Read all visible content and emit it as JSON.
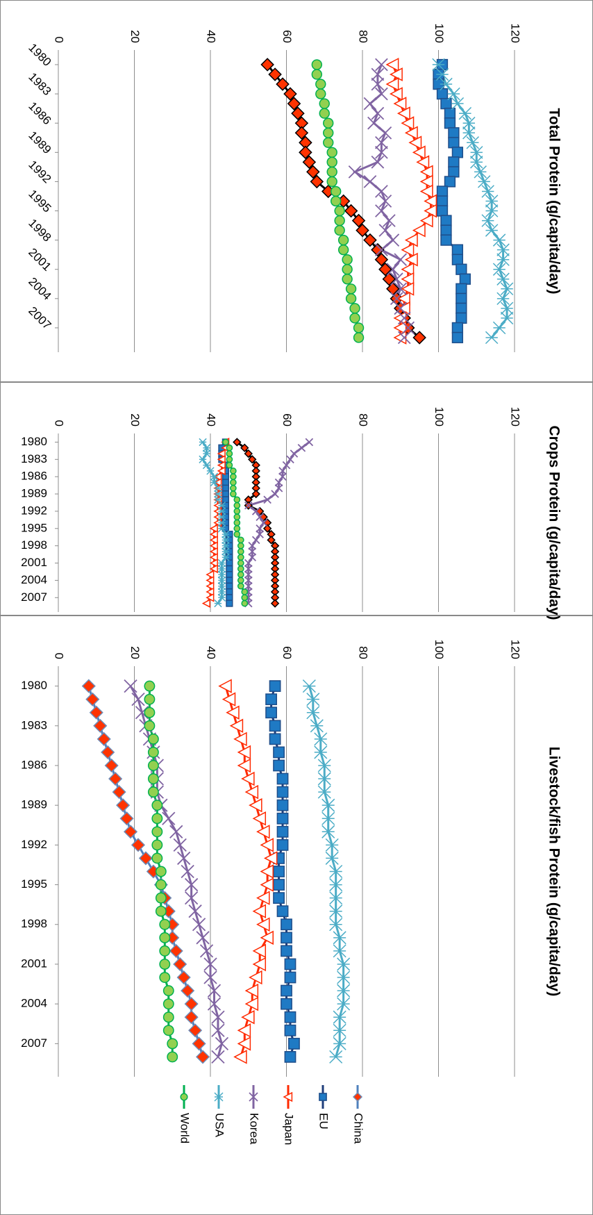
{
  "chart_data": [
    {
      "type": "line",
      "title": "Total Protein (g/capita/day)",
      "x": [
        1980,
        1981,
        1982,
        1983,
        1984,
        1985,
        1986,
        1987,
        1988,
        1989,
        1990,
        1991,
        1992,
        1993,
        1994,
        1995,
        1996,
        1997,
        1998,
        1999,
        2000,
        2001,
        2002,
        2003,
        2004,
        2005,
        2006,
        2007,
        2008
      ],
      "xlim": [
        1978.5,
        2009.5
      ],
      "xticks": [
        1980,
        1983,
        1986,
        1989,
        1992,
        1995,
        1998,
        2001,
        2004,
        2007
      ],
      "ylim": [
        0,
        120
      ],
      "yticks": [
        0,
        20,
        40,
        60,
        80,
        100,
        120
      ],
      "grid": true,
      "series": [
        {
          "name": "China",
          "color": "#ff3300",
          "line_color": "#000000",
          "edge": "#000000",
          "marker": "diamond",
          "values": [
            55,
            57,
            59,
            61,
            62,
            63,
            64,
            64,
            65,
            65,
            66,
            67,
            68,
            71,
            75,
            77,
            79,
            80,
            82,
            84,
            85,
            86,
            87,
            88,
            89,
            90,
            91,
            92,
            95
          ]
        },
        {
          "name": "EU",
          "color": "#1f7ac4",
          "line_color": "#1f3d7a",
          "edge": "#1f4e8a",
          "marker": "square",
          "values": [
            101,
            100,
            100,
            101,
            102,
            103,
            103,
            104,
            104,
            105,
            104,
            104,
            103,
            101,
            101,
            101,
            102,
            102,
            102,
            105,
            105,
            106,
            107,
            106,
            106,
            106,
            106,
            105,
            105
          ]
        },
        {
          "name": "Japan",
          "color": "#ffffff",
          "line_color": "#ff2a00",
          "edge": "#ff2a00",
          "marker": "triangle",
          "values": [
            88,
            89,
            88,
            89,
            90,
            91,
            92,
            93,
            94,
            95,
            96,
            97,
            97,
            97,
            98,
            98,
            97,
            95,
            93,
            92,
            93,
            92,
            92,
            92,
            91,
            91,
            90,
            90,
            90
          ]
        },
        {
          "name": "Korea",
          "color": "#8064a2",
          "line_color": "#8064a2",
          "edge": "#8064a2",
          "marker": "x",
          "values": [
            85,
            84,
            84,
            85,
            82,
            84,
            83,
            86,
            85,
            85,
            84,
            78,
            82,
            85,
            86,
            85,
            87,
            86,
            88,
            85,
            90,
            88,
            89,
            90,
            89,
            90,
            91,
            92,
            91
          ]
        },
        {
          "name": "USA",
          "color": "#4bacc6",
          "line_color": "#4bacc6",
          "edge": "#4bacc6",
          "marker": "star",
          "values": [
            100,
            101,
            102,
            104,
            105,
            107,
            108,
            108,
            109,
            110,
            110,
            111,
            112,
            113,
            114,
            114,
            113,
            114,
            116,
            117,
            117,
            116,
            117,
            118,
            117,
            118,
            118,
            116,
            114
          ]
        },
        {
          "name": "World",
          "color": "#92d050",
          "line_color": "#00b050",
          "edge": "#00b050",
          "marker": "circle",
          "values": [
            68,
            68,
            69,
            69,
            70,
            70,
            71,
            71,
            71,
            72,
            72,
            72,
            72,
            73,
            73,
            74,
            74,
            74,
            75,
            75,
            76,
            76,
            76,
            77,
            77,
            78,
            78,
            79,
            79
          ]
        }
      ]
    },
    {
      "type": "line",
      "title": "Crops Protein (g/capita/day)",
      "x": [
        1980,
        1981,
        1982,
        1983,
        1984,
        1985,
        1986,
        1987,
        1988,
        1989,
        1990,
        1991,
        1992,
        1993,
        1994,
        1995,
        1996,
        1997,
        1998,
        1999,
        2000,
        2001,
        2002,
        2003,
        2004,
        2005,
        2006,
        2007,
        2008
      ],
      "xlim": [
        1978.5,
        2009.5
      ],
      "xticks": [
        1980,
        1983,
        1986,
        1989,
        1992,
        1995,
        1998,
        2001,
        2004,
        2007
      ],
      "ylim": [
        0,
        120
      ],
      "yticks": [
        0,
        20,
        40,
        60,
        80,
        100,
        120
      ],
      "grid": true,
      "series": [
        {
          "name": "China",
          "color": "#ff3300",
          "line_color": "#000000",
          "edge": "#000000",
          "marker": "diamond",
          "values": [
            47,
            49,
            50,
            51,
            52,
            52,
            52,
            52,
            52,
            52,
            50,
            50,
            53,
            54,
            55,
            55,
            56,
            56,
            57,
            57,
            57,
            57,
            57,
            57,
            57,
            57,
            57,
            57,
            57
          ]
        },
        {
          "name": "EU",
          "color": "#1f7ac4",
          "line_color": "#1f3d7a",
          "edge": "#1f4e8a",
          "marker": "square",
          "values": [
            44,
            43,
            43,
            43,
            44,
            44,
            44,
            44,
            44,
            44,
            44,
            44,
            44,
            44,
            44,
            44,
            45,
            45,
            45,
            45,
            45,
            45,
            45,
            45,
            45,
            45,
            45,
            45,
            45
          ]
        },
        {
          "name": "Japan",
          "color": "#ffffff",
          "line_color": "#ff2a00",
          "edge": "#ff2a00",
          "marker": "triangle",
          "values": [
            44,
            44,
            43,
            43,
            43,
            43,
            42,
            42,
            42,
            42,
            42,
            42,
            42,
            42,
            42,
            41,
            41,
            41,
            41,
            41,
            41,
            41,
            41,
            40,
            40,
            40,
            40,
            40,
            39
          ]
        },
        {
          "name": "Korea",
          "color": "#8064a2",
          "line_color": "#8064a2",
          "edge": "#8064a2",
          "marker": "x",
          "values": [
            66,
            64,
            62,
            61,
            60,
            59,
            59,
            58,
            58,
            57,
            55,
            50,
            52,
            53,
            54,
            53,
            53,
            52,
            51,
            51,
            51,
            50,
            50,
            50,
            50,
            50,
            50,
            50,
            50
          ]
        },
        {
          "name": "USA",
          "color": "#4bacc6",
          "line_color": "#4bacc6",
          "edge": "#4bacc6",
          "marker": "star",
          "values": [
            38,
            39,
            39,
            38,
            39,
            40,
            41,
            41,
            42,
            42,
            42,
            43,
            43,
            43,
            43,
            43,
            44,
            44,
            44,
            44,
            44,
            43,
            43,
            43,
            43,
            43,
            43,
            43,
            42
          ]
        },
        {
          "name": "World",
          "color": "#92d050",
          "line_color": "#00b050",
          "edge": "#00b050",
          "marker": "circle",
          "values": [
            44,
            45,
            45,
            45,
            45,
            46,
            46,
            46,
            46,
            46,
            47,
            47,
            47,
            47,
            47,
            47,
            47,
            48,
            48,
            48,
            48,
            48,
            48,
            48,
            48,
            48,
            49,
            49,
            49
          ]
        }
      ]
    },
    {
      "type": "line",
      "title": "Livestock/fish Protein (g/capita/day)",
      "x": [
        1980,
        1981,
        1982,
        1983,
        1984,
        1985,
        1986,
        1987,
        1988,
        1989,
        1990,
        1991,
        1992,
        1993,
        1994,
        1995,
        1996,
        1997,
        1998,
        1999,
        2000,
        2001,
        2002,
        2003,
        2004,
        2005,
        2006,
        2007,
        2008
      ],
      "xlim": [
        1978.5,
        2009.5
      ],
      "xticks": [
        1980,
        1983,
        1986,
        1989,
        1992,
        1995,
        1998,
        2001,
        2004,
        2007
      ],
      "ylim": [
        0,
        120
      ],
      "yticks": [
        0,
        20,
        40,
        60,
        80,
        100,
        120
      ],
      "grid": true,
      "legend": "right",
      "series": [
        {
          "name": "China",
          "color": "#ff3300",
          "line_color": "#4f81bd",
          "edge": "#6e8bb5",
          "marker": "diamond",
          "values": [
            8,
            9,
            10,
            11,
            12,
            13,
            14,
            15,
            16,
            17,
            18,
            19,
            21,
            23,
            25,
            27,
            28,
            29,
            30,
            30,
            31,
            32,
            33,
            34,
            35,
            35,
            36,
            37,
            38
          ]
        },
        {
          "name": "EU",
          "color": "#1f7ac4",
          "line_color": "#1f3d7a",
          "edge": "#1f4e8a",
          "marker": "square",
          "values": [
            57,
            56,
            56,
            57,
            57,
            58,
            58,
            59,
            59,
            59,
            59,
            59,
            59,
            58,
            58,
            58,
            58,
            59,
            60,
            60,
            60,
            61,
            61,
            60,
            60,
            61,
            61,
            62,
            61
          ]
        },
        {
          "name": "Japan",
          "color": "#ffffff",
          "line_color": "#ff2a00",
          "edge": "#ff2a00",
          "marker": "triangle",
          "values": [
            44,
            45,
            46,
            47,
            48,
            49,
            49,
            50,
            51,
            52,
            53,
            54,
            55,
            56,
            55,
            55,
            54,
            53,
            54,
            55,
            53,
            53,
            52,
            51,
            51,
            50,
            49,
            49,
            48
          ]
        },
        {
          "name": "Korea",
          "color": "#8064a2",
          "line_color": "#8064a2",
          "edge": "#8064a2",
          "marker": "x",
          "values": [
            19,
            21,
            22,
            23,
            24,
            25,
            26,
            26,
            26,
            27,
            29,
            31,
            32,
            33,
            34,
            35,
            35,
            36,
            37,
            38,
            39,
            40,
            40,
            41,
            41,
            42,
            42,
            43,
            42
          ]
        },
        {
          "name": "USA",
          "color": "#4bacc6",
          "line_color": "#4bacc6",
          "edge": "#4bacc6",
          "marker": "star",
          "values": [
            66,
            67,
            67,
            68,
            69,
            69,
            70,
            70,
            70,
            71,
            71,
            71,
            72,
            72,
            73,
            73,
            73,
            73,
            73,
            74,
            74,
            75,
            75,
            75,
            75,
            74,
            74,
            74,
            73
          ]
        },
        {
          "name": "World",
          "color": "#92d050",
          "line_color": "#00b050",
          "edge": "#00b050",
          "marker": "circle",
          "values": [
            24,
            24,
            24,
            24,
            25,
            25,
            25,
            25,
            25,
            26,
            26,
            26,
            26,
            26,
            27,
            27,
            27,
            27,
            28,
            28,
            28,
            28,
            28,
            29,
            29,
            29,
            29,
            30,
            30
          ]
        }
      ]
    }
  ]
}
